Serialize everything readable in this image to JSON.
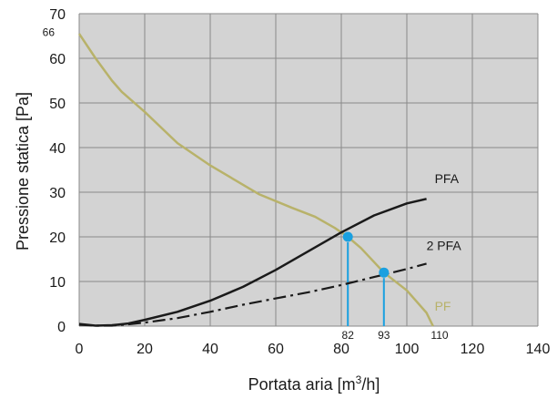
{
  "chart_data": {
    "type": "line",
    "xlabel_prefix": "Portata aria [m",
    "xlabel_sup": "3",
    "xlabel_suffix": "/h]",
    "ylabel": "Pressione statica [Pa]",
    "xlim": [
      0,
      140
    ],
    "ylim": [
      0,
      70
    ],
    "xticks": [
      0,
      20,
      40,
      60,
      80,
      100,
      120,
      140
    ],
    "yticks": [
      0,
      10,
      20,
      30,
      40,
      50,
      60,
      70
    ],
    "grid": true,
    "annotations": {
      "y66": "66",
      "x82": "82",
      "x93": "93",
      "x110": "110"
    },
    "series": [
      {
        "name": "PF",
        "color": "#b8b26a",
        "style": "solid",
        "x": [
          0,
          5,
          10,
          13,
          20,
          30,
          40,
          55,
          65,
          72,
          78,
          82,
          86,
          93,
          100,
          106,
          108
        ],
        "y": [
          65.5,
          60,
          55,
          52.5,
          48,
          41,
          36,
          29.5,
          26.5,
          24.5,
          22,
          20,
          17.5,
          12,
          8,
          3,
          0
        ]
      },
      {
        "name": "PFA",
        "color": "#1a1a1a",
        "style": "solid",
        "x": [
          0,
          5,
          10,
          15,
          20,
          30,
          40,
          50,
          60,
          70,
          80,
          90,
          100,
          106
        ],
        "y": [
          0.5,
          0.1,
          0.2,
          0.6,
          1.4,
          3.2,
          5.7,
          8.8,
          12.6,
          16.8,
          21,
          24.8,
          27.5,
          28.5
        ]
      },
      {
        "name": "2 PFA",
        "color": "#1a1a1a",
        "style": "dashdot",
        "x": [
          0,
          5,
          10,
          15,
          20,
          30,
          40,
          50,
          60,
          70,
          80,
          90,
          100,
          106
        ],
        "y": [
          0.3,
          0.1,
          0.1,
          0.4,
          0.8,
          1.8,
          3.2,
          4.8,
          6.2,
          7.6,
          9.2,
          11,
          12.8,
          14
        ]
      }
    ],
    "points": [
      {
        "x": 82,
        "y": 20,
        "color": "#1aa0e0"
      },
      {
        "x": 93,
        "y": 12,
        "color": "#1aa0e0"
      }
    ]
  }
}
